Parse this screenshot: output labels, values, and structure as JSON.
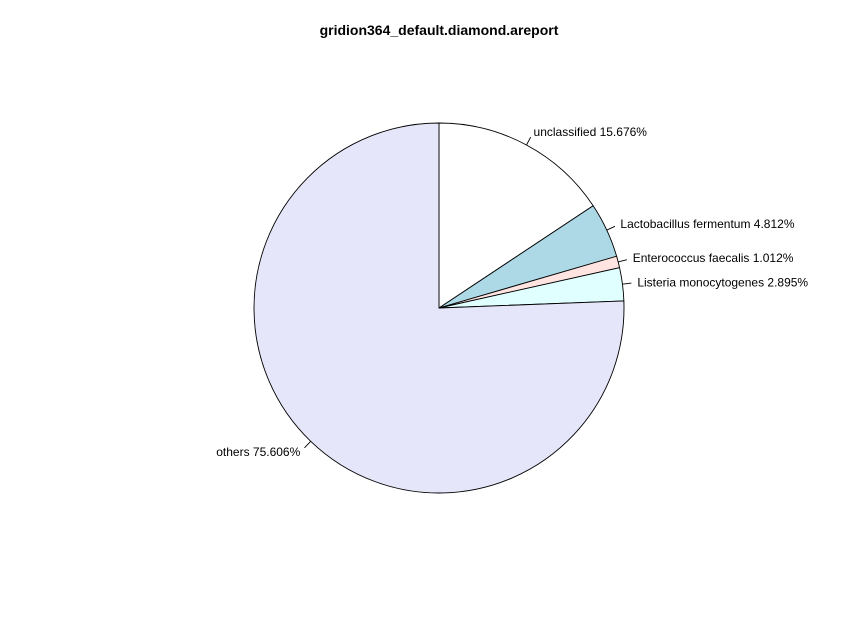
{
  "chart_data": {
    "type": "pie",
    "title": "gridion364_default.diamond.areport",
    "start_angle_deg": 90,
    "direction": "clockwise",
    "slices": [
      {
        "label": "unclassified 15.676%",
        "value": 15.676,
        "color": "#ffffff"
      },
      {
        "label": "Lactobacillus fermentum 4.812%",
        "value": 4.812,
        "color": "#add8e6"
      },
      {
        "label": "Enterococcus faecalis 1.012%",
        "value": 1.012,
        "color": "#ffe4e1"
      },
      {
        "label": "Listeria monocytogenes 2.895%",
        "value": 2.895,
        "color": "#e0ffff"
      },
      {
        "label": "others 75.606%",
        "value": 75.606,
        "color": "#e6e6fa"
      }
    ]
  }
}
